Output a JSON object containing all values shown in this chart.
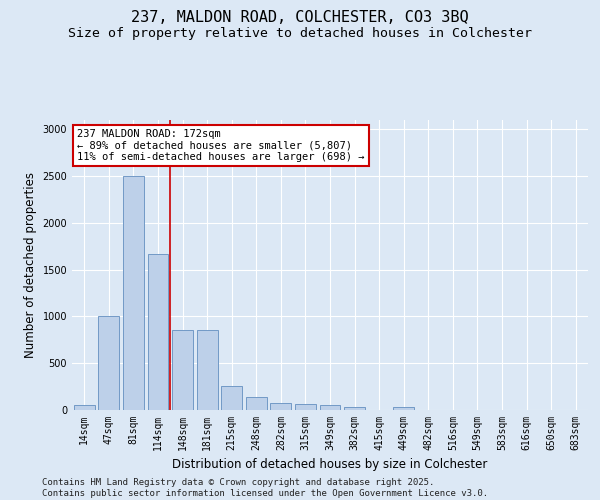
{
  "title_line1": "237, MALDON ROAD, COLCHESTER, CO3 3BQ",
  "title_line2": "Size of property relative to detached houses in Colchester",
  "xlabel": "Distribution of detached houses by size in Colchester",
  "ylabel": "Number of detached properties",
  "categories": [
    "14sqm",
    "47sqm",
    "81sqm",
    "114sqm",
    "148sqm",
    "181sqm",
    "215sqm",
    "248sqm",
    "282sqm",
    "315sqm",
    "349sqm",
    "382sqm",
    "415sqm",
    "449sqm",
    "482sqm",
    "516sqm",
    "549sqm",
    "583sqm",
    "616sqm",
    "650sqm",
    "683sqm"
  ],
  "values": [
    50,
    1000,
    2500,
    1670,
    850,
    850,
    260,
    140,
    75,
    60,
    50,
    30,
    0,
    30,
    0,
    0,
    0,
    0,
    0,
    0,
    0
  ],
  "bar_color": "#bdd0e9",
  "bar_edge_color": "#7299c6",
  "vline_x": 3.5,
  "vline_color": "#cc0000",
  "annotation_text": "237 MALDON ROAD: 172sqm\n← 89% of detached houses are smaller (5,807)\n11% of semi-detached houses are larger (698) →",
  "annotation_box_color": "#ffffff",
  "annotation_box_edge_color": "#cc0000",
  "ylim": [
    0,
    3100
  ],
  "yticks": [
    0,
    500,
    1000,
    1500,
    2000,
    2500,
    3000
  ],
  "background_color": "#dce8f5",
  "plot_bg_color": "#dce8f5",
  "footer_line1": "Contains HM Land Registry data © Crown copyright and database right 2025.",
  "footer_line2": "Contains public sector information licensed under the Open Government Licence v3.0.",
  "title_fontsize": 11,
  "subtitle_fontsize": 9.5,
  "axis_label_fontsize": 8.5,
  "tick_fontsize": 7,
  "annotation_fontsize": 7.5,
  "footer_fontsize": 6.5
}
